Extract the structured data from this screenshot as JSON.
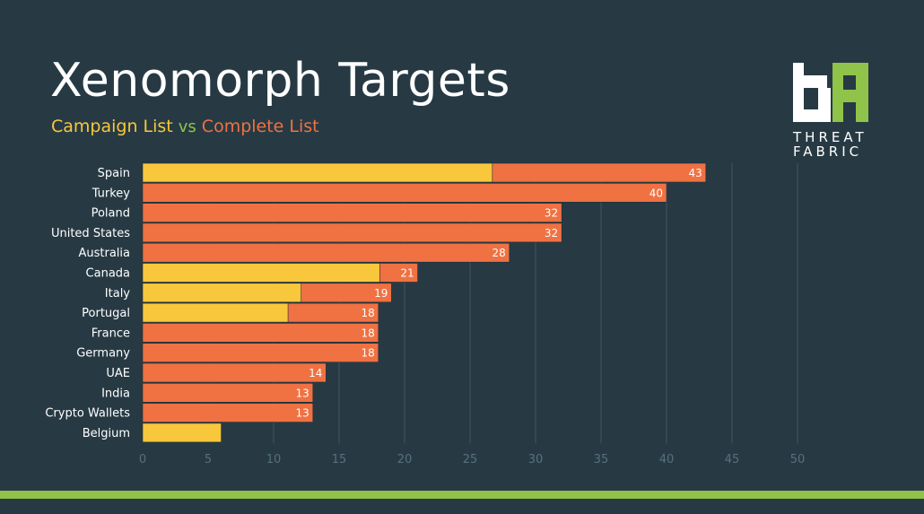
{
  "title": "Xenomorph Targets",
  "subtitle": {
    "campaign": "Campaign List",
    "vs": "vs",
    "complete": "Complete List"
  },
  "logo": {
    "line1": "THREAT",
    "line2": "FABRIC"
  },
  "colors": {
    "background": "#273a44",
    "campaign": "#f9c73b",
    "complete": "#f07142",
    "accent_green": "#8fc34a"
  },
  "chart_data": {
    "type": "bar",
    "orientation": "horizontal",
    "categories": [
      "Spain",
      "Turkey",
      "Poland",
      "United States",
      "Australia",
      "Canada",
      "Italy",
      "Portugal",
      "France",
      "Germany",
      "UAE",
      "India",
      "Crypto Wallets",
      "Belgium"
    ],
    "series": [
      {
        "name": "Complete List",
        "color": "#f07142",
        "values": [
          43,
          40,
          32,
          32,
          28,
          21,
          19,
          18,
          18,
          18,
          14,
          13,
          13,
          6
        ]
      },
      {
        "name": "Campaign List",
        "color": "#f9c73b",
        "values": [
          26.7,
          0,
          0,
          0,
          0,
          18.1,
          12.1,
          11.1,
          0,
          0,
          0,
          0,
          0,
          6
        ]
      }
    ],
    "data_labels": [
      "43",
      "40",
      "32",
      "32",
      "28",
      "21",
      "19",
      "18",
      "18",
      "18",
      "14",
      "13",
      "13",
      ""
    ],
    "xlim": [
      0,
      50
    ],
    "xticks": [
      0,
      5,
      10,
      15,
      20,
      25,
      30,
      35,
      40,
      45,
      50
    ],
    "grid": true
  }
}
